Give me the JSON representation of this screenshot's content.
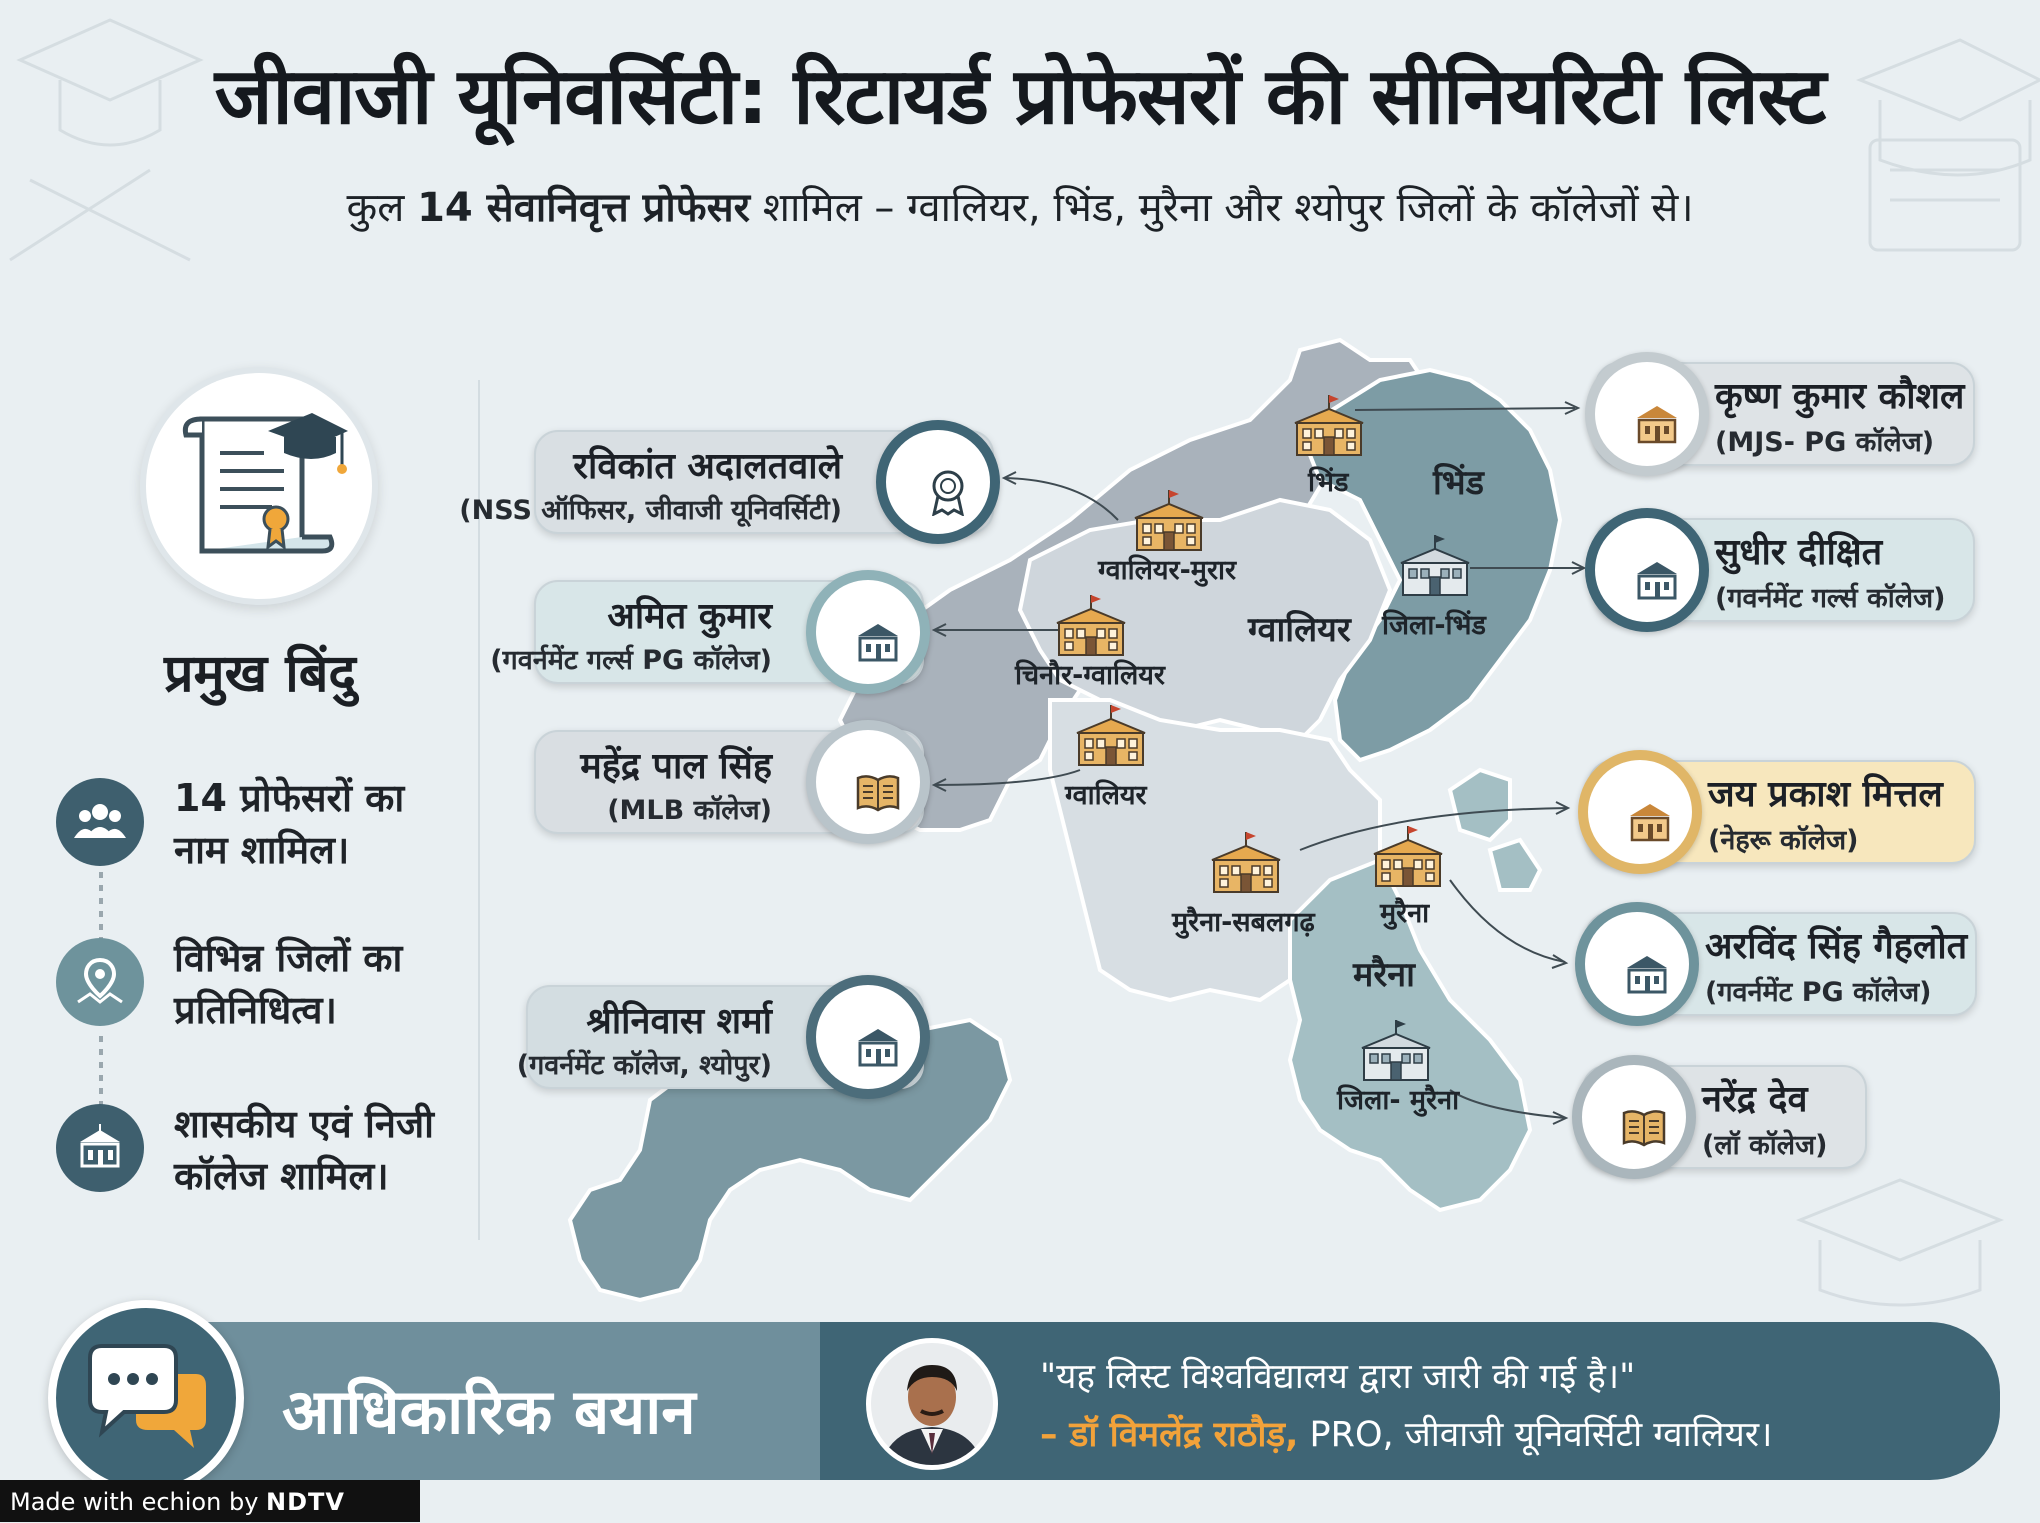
{
  "header": {
    "title": "जीवाजी यूनिवर्सिटी: रिटायर्ड प्रोफेसरों की सीनियरिटी लिस्ट",
    "subtitle_pre": "कुल ",
    "subtitle_bold": "14 सेवानिवृत्त प्रोफेसर",
    "subtitle_post": " शामिल – ग्वालियर, भिंड, मुरैना और श्योपुर जिलों के कॉलेजों से।"
  },
  "key_points": {
    "title": "प्रमुख बिंदु",
    "items": [
      {
        "line1": "14 प्रोफेसरों का",
        "line2": "नाम शामिल।",
        "icon": "people-group-icon"
      },
      {
        "line1": "विभिन्न जिलों का",
        "line2": "प्रतिनिधित्व।",
        "icon": "map-pin-icon"
      },
      {
        "line1": "शासकीय एवं निजी",
        "line2": "कॉलेज शामिल।",
        "icon": "college-building-icon"
      }
    ]
  },
  "callouts": {
    "left": [
      {
        "name": "रविकांत अदालतवाले",
        "sub": "(NSS ऑफिसर, जीवाजी यूनिवर्सिटी)",
        "icon": "award-badge-icon"
      },
      {
        "name": "अमित कुमार",
        "sub": "(गवर्नमेंट गर्ल्स PG कॉलेज)",
        "icon": "college-icon"
      },
      {
        "name": "महेंद्र पाल सिंह",
        "sub": "(MLB कॉलेज)",
        "icon": "open-book-icon"
      },
      {
        "name": "श्रीनिवास शर्मा",
        "sub": "(गवर्नमेंट कॉलेज, श्योपुर)",
        "icon": "college-icon"
      }
    ],
    "right": [
      {
        "name": "कृष्ण कुमार कौशल",
        "sub": "(MJS- PG कॉलेज)",
        "icon": "college-icon"
      },
      {
        "name": "सुधीर दीक्षित",
        "sub": "(गवर्नमेंट गर्ल्स कॉलेज)",
        "icon": "college-icon"
      },
      {
        "name": "जय प्रकाश मित्तल",
        "sub": "(नेहरू कॉलेज)",
        "icon": "college-icon"
      },
      {
        "name": "अरविंद सिंह गैहलोत",
        "sub": "(गवर्नमेंट PG कॉलेज)",
        "icon": "college-icon"
      },
      {
        "name": "नरेंद्र देव",
        "sub": "(लॉ कॉलेज)",
        "icon": "open-book-icon"
      }
    ]
  },
  "map": {
    "districts": [
      "भिंड",
      "ग्वालियर",
      "मरैना"
    ],
    "places": [
      "भिंड",
      "ग्वालियर-मुरार",
      "चिनौर-ग्वालियर",
      "ग्वालियर",
      "जिला-भिंड",
      "मुरैना-सबलगढ़",
      "मुरैना",
      "जिला- मुरैना"
    ],
    "colors": {
      "bhind": "#7d9ca5",
      "gwalior": "#cfd6dc",
      "north": "#a9b2bb",
      "morena": "#d7dee3",
      "morena_dist": "#a4bfc4",
      "sheopur": "#7b98a2"
    }
  },
  "statement": {
    "title": "आधिकारिक बयान",
    "quote": "\"यह लिस्ट विश्वविद्यालय द्वारा जारी की गई है।\"",
    "author": "– डॉ विमलेंद्र राठौड़,",
    "author_role": " PRO, जीवाजी यूनिवर्सिटी ग्वालियर।"
  },
  "footer": {
    "made_with": "Made with ",
    "brand": "echion",
    "by": " by ",
    "partner": "NDTV"
  }
}
